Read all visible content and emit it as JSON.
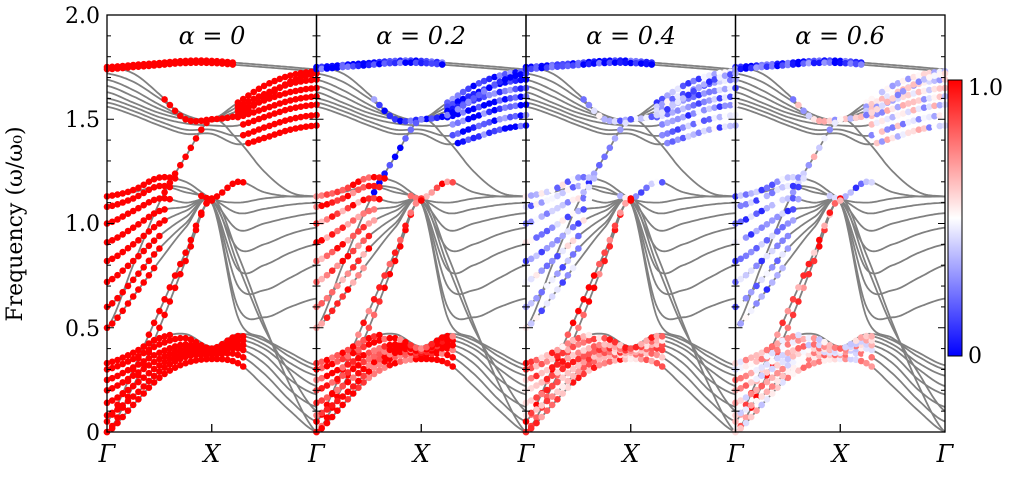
{
  "chart_data": {
    "type": "scatter",
    "ylabel": "Frequency (ω/ω₀)",
    "ylim": [
      0,
      2.0
    ],
    "yticks": [
      "0",
      "0.5",
      "1.0",
      "1.5",
      "2.0"
    ],
    "ytick_values": [
      0,
      0.5,
      1.0,
      1.5,
      2.0
    ],
    "xticks": [
      "Γ",
      "X",
      "Γ"
    ],
    "xtick_values": [
      0,
      1,
      2
    ],
    "k_samples": [
      0,
      0.25,
      0.5,
      0.75,
      1.0,
      1.25,
      1.5,
      1.75,
      2.0
    ],
    "band_color": "#808080",
    "panels": [
      {
        "title": "α = 0",
        "weights": {
          "top": 1.0,
          "upper": 1.0,
          "middle": 1.0,
          "acoustic": 1.0,
          "low": 1.0
        }
      },
      {
        "title": "α = 0.2",
        "weights": {
          "top": 0.05,
          "upper": 0.1,
          "middle": 0.85,
          "acoustic": 0.95,
          "low": 0.95
        }
      },
      {
        "title": "α = 0.4",
        "weights": {
          "top": 0.05,
          "upper": 0.3,
          "middle": 0.35,
          "acoustic": 0.9,
          "low": 0.75
        }
      },
      {
        "title": "α = 0.6",
        "weights": {
          "top": 0.1,
          "upper": 0.45,
          "middle": 0.3,
          "acoustic": 0.8,
          "low": 0.6
        }
      }
    ],
    "bands": [
      {
        "group": "top",
        "range": [
          0,
          1.2
        ],
        "f": [
          1.75,
          1.76,
          1.77,
          1.78,
          1.78,
          1.77,
          1.76,
          1.75,
          1.74
        ]
      },
      {
        "group": "top",
        "range": [
          0,
          1.2
        ],
        "f": [
          1.74,
          1.75,
          1.76,
          1.77,
          1.77,
          1.76,
          1.75,
          1.74,
          1.73
        ]
      },
      {
        "group": "upper",
        "range": [
          1.25,
          2
        ],
        "f": [
          1.72,
          1.68,
          1.6,
          1.52,
          1.5,
          1.58,
          1.66,
          1.71,
          1.73
        ]
      },
      {
        "group": "upper",
        "range": [
          1.25,
          2
        ],
        "f": [
          1.69,
          1.64,
          1.57,
          1.51,
          1.5,
          1.56,
          1.62,
          1.67,
          1.69
        ]
      },
      {
        "group": "upper",
        "range": [
          1.25,
          2
        ],
        "f": [
          1.66,
          1.61,
          1.55,
          1.51,
          1.5,
          1.54,
          1.59,
          1.63,
          1.65
        ]
      },
      {
        "group": "upper",
        "range": [
          1.25,
          2
        ],
        "f": [
          1.63,
          1.58,
          1.53,
          1.5,
          1.49,
          1.51,
          1.55,
          1.59,
          1.61
        ]
      },
      {
        "group": "upper",
        "range": [
          1.3,
          2
        ],
        "f": [
          1.6,
          1.56,
          1.51,
          1.48,
          1.47,
          1.47,
          1.51,
          1.55,
          1.57
        ]
      },
      {
        "group": "upper",
        "range": [
          1.3,
          2
        ],
        "f": [
          1.58,
          1.54,
          1.49,
          1.45,
          1.45,
          1.42,
          1.46,
          1.5,
          1.52
        ]
      },
      {
        "group": "upper",
        "range": [
          1.35,
          2
        ],
        "f": [
          1.56,
          1.52,
          1.47,
          1.43,
          1.43,
          1.38,
          1.41,
          1.45,
          1.47
        ]
      },
      {
        "group": "upper",
        "range": [
          0.55,
          2
        ],
        "f": [
          1.75,
          1.72,
          1.62,
          1.5,
          1.5,
          1.52,
          1.6,
          1.68,
          1.72
        ]
      },
      {
        "group": "upper",
        "range": [
          0.55,
          1.0
        ],
        "f": [
          0.5,
          0.8,
          1.1,
          1.32,
          1.5,
          1.4,
          1.25,
          1.15,
          1.13
        ]
      },
      {
        "group": "middle",
        "range": [
          0,
          0.65
        ],
        "f": [
          1.13,
          1.16,
          1.22,
          1.2,
          1.12,
          1.1,
          1.12,
          1.13,
          1.13
        ]
      },
      {
        "group": "middle",
        "range": [
          0,
          0.6
        ],
        "f": [
          1.08,
          1.12,
          1.18,
          1.15,
          1.12,
          1.05,
          1.07,
          1.09,
          1.1
        ]
      },
      {
        "group": "middle",
        "range": [
          0,
          0.6
        ],
        "f": [
          1.0,
          1.06,
          1.12,
          1.1,
          1.11,
          0.97,
          1.0,
          1.03,
          1.05
        ]
      },
      {
        "group": "middle",
        "range": [
          0,
          0.55
        ],
        "f": [
          0.91,
          0.98,
          1.06,
          1.08,
          1.11,
          0.88,
          0.9,
          0.95,
          0.98
        ]
      },
      {
        "group": "middle",
        "range": [
          0,
          0.55
        ],
        "f": [
          0.82,
          0.9,
          1.0,
          1.06,
          1.1,
          0.78,
          0.8,
          0.86,
          0.9
        ]
      },
      {
        "group": "middle",
        "range": [
          0,
          0.5
        ],
        "f": [
          0.72,
          0.82,
          0.94,
          1.03,
          1.1,
          0.7,
          0.68,
          0.74,
          0.8
        ]
      },
      {
        "group": "middle",
        "range": [
          0,
          0.5
        ],
        "f": [
          0.6,
          0.73,
          0.88,
          1.0,
          1.1,
          0.6,
          0.55,
          0.6,
          0.64
        ]
      },
      {
        "group": "middle",
        "range": [
          0,
          0.45
        ],
        "f": [
          0.5,
          0.65,
          0.82,
          0.98,
          1.1,
          0.55,
          0.45,
          0.38,
          0.32
        ]
      },
      {
        "group": "middle",
        "range": [
          0.9,
          1.3
        ],
        "f": [
          1.13,
          1.15,
          1.18,
          1.17,
          1.12,
          1.2,
          1.15,
          1.13,
          1.13
        ]
      },
      {
        "group": "acoustic",
        "range": [
          0,
          1.0
        ],
        "f": [
          0.0,
          0.22,
          0.5,
          0.82,
          1.12,
          0.85,
          0.52,
          0.22,
          0.0
        ]
      },
      {
        "group": "acoustic",
        "range": [
          0,
          1.0
        ],
        "f": [
          0.05,
          0.3,
          0.58,
          0.86,
          1.11,
          0.8,
          0.5,
          0.28,
          0.1
        ]
      },
      {
        "group": "low",
        "range": [
          0,
          1.3
        ],
        "f": [
          0.0,
          0.13,
          0.26,
          0.33,
          0.35,
          0.33,
          0.22,
          0.1,
          0.0
        ]
      },
      {
        "group": "low",
        "range": [
          0,
          1.3
        ],
        "f": [
          0.08,
          0.17,
          0.29,
          0.36,
          0.37,
          0.37,
          0.28,
          0.15,
          0.05
        ]
      },
      {
        "group": "low",
        "range": [
          0,
          1.3
        ],
        "f": [
          0.14,
          0.22,
          0.32,
          0.38,
          0.38,
          0.4,
          0.33,
          0.2,
          0.12
        ]
      },
      {
        "group": "low",
        "range": [
          0,
          1.3
        ],
        "f": [
          0.2,
          0.27,
          0.35,
          0.4,
          0.39,
          0.42,
          0.37,
          0.25,
          0.18
        ]
      },
      {
        "group": "low",
        "range": [
          0,
          1.3
        ],
        "f": [
          0.25,
          0.31,
          0.38,
          0.42,
          0.39,
          0.44,
          0.4,
          0.3,
          0.22
        ]
      },
      {
        "group": "low",
        "range": [
          0,
          1.3
        ],
        "f": [
          0.3,
          0.35,
          0.42,
          0.45,
          0.4,
          0.46,
          0.42,
          0.33,
          0.27
        ]
      },
      {
        "group": "low",
        "range": [
          0,
          0.6
        ],
        "f": [
          0.33,
          0.38,
          0.45,
          0.47,
          0.41,
          0.47,
          0.44,
          0.36,
          0.3
        ]
      }
    ],
    "colorbar": {
      "colormap": "bwr",
      "range": [
        0,
        1.0
      ],
      "tick_labels": [
        "0",
        "1.0"
      ],
      "low_color": "#0000ff",
      "mid_color": "#ffffff",
      "high_color": "#ff0000"
    }
  }
}
